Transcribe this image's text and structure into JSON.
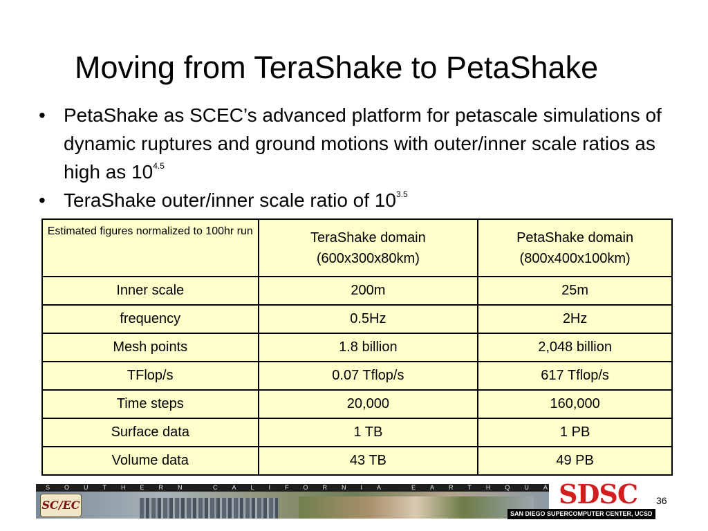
{
  "slide": {
    "title": "Moving from TeraShake to PetaShake",
    "bullets": [
      {
        "text": "PetaShake as SCEC’s advanced platform for petascale simulations of dynamic ruptures and ground motions with outer/inner scale ratios as high as 10",
        "superscript": "4.5"
      },
      {
        "text": "TeraShake outer/inner scale ratio of 10",
        "superscript": "3.5"
      }
    ],
    "bullet_glyph": "•"
  },
  "table": {
    "header": {
      "corner": "Estimated figures normalized to 100hr run",
      "terashake_line1": "TeraShake domain",
      "terashake_line2": "(600x300x80km)",
      "petashake_line1": "PetaShake domain",
      "petashake_line2": "(800x400x100km)"
    },
    "rows": [
      [
        "Inner scale",
        "200m",
        "25m"
      ],
      [
        "frequency",
        "0.5Hz",
        "2Hz"
      ],
      [
        "Mesh points",
        "1.8 billion",
        "2,048 billion"
      ],
      [
        "TFlop/s",
        "0.07 Tflop/s",
        "617 Tflop/s"
      ],
      [
        "Time steps",
        "20,000",
        "160,000"
      ],
      [
        "Surface data",
        "1 TB",
        "1 PB"
      ],
      [
        "Volume data",
        "43 TB",
        "49 PB"
      ]
    ],
    "fill_color": "#ffffcc"
  },
  "footer": {
    "banner_text": "SOUTHERN CALIFORNIA EARTHQUAKE CENTER",
    "scec_logo": "SC/EC",
    "sdsc_logo": "SDSC",
    "sdsc_caption": "SAN DIEGO SUPERCOMPUTER CENTER, UCSD",
    "page_number": "36",
    "sdsc_color": "#d21e1e"
  }
}
